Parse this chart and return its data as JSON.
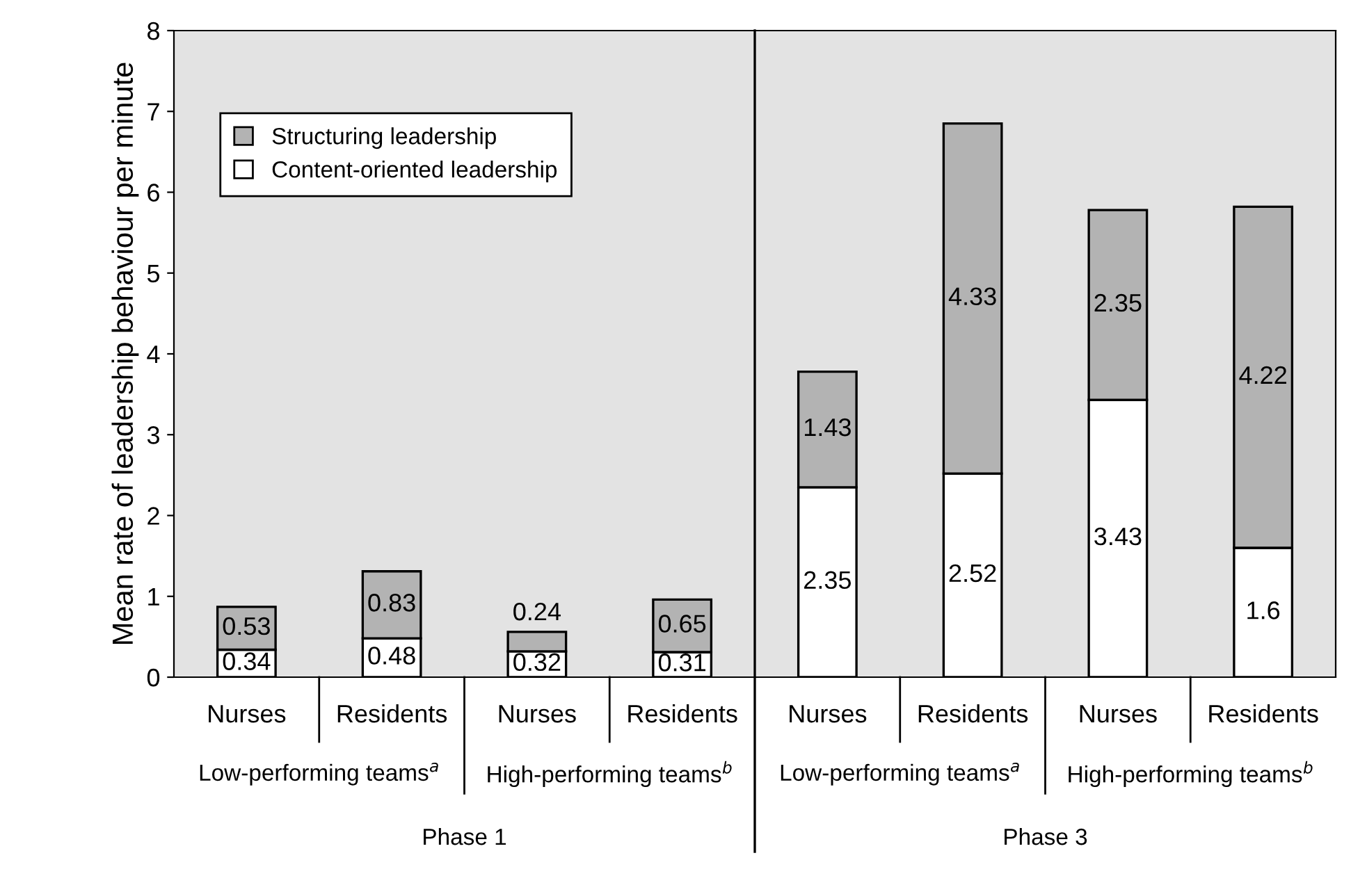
{
  "chart_data": {
    "type": "bar",
    "stacked": true,
    "ylabel": "Mean rate of leadership behaviour per minute",
    "categories": [
      "Nurses",
      "Residents",
      "Nurses",
      "Residents",
      "Nurses",
      "Residents",
      "Nurses",
      "Residents"
    ],
    "series": [
      {
        "name": "Content-oriented leadership",
        "color": "#ffffff",
        "values": [
          0.34,
          0.48,
          0.32,
          0.31,
          2.35,
          2.52,
          3.43,
          1.6
        ]
      },
      {
        "name": "Structuring leadership",
        "color": "#b3b3b3",
        "values": [
          0.53,
          0.83,
          0.24,
          0.65,
          1.43,
          4.33,
          2.35,
          4.22
        ]
      }
    ],
    "ylim": [
      0,
      8
    ],
    "yticks": [
      0,
      1,
      2,
      3,
      4,
      5,
      6,
      7,
      8
    ],
    "data_labels": true,
    "grid": false,
    "legend": "top left",
    "annotations": [
      "Low-performing teams$^{a}$",
      "High-performing teams$^{b}$",
      "Low-performing teams$^{a}$",
      "High-performing teams$^{b}$",
      "Phase 1",
      "Phase 3"
    ]
  }
}
